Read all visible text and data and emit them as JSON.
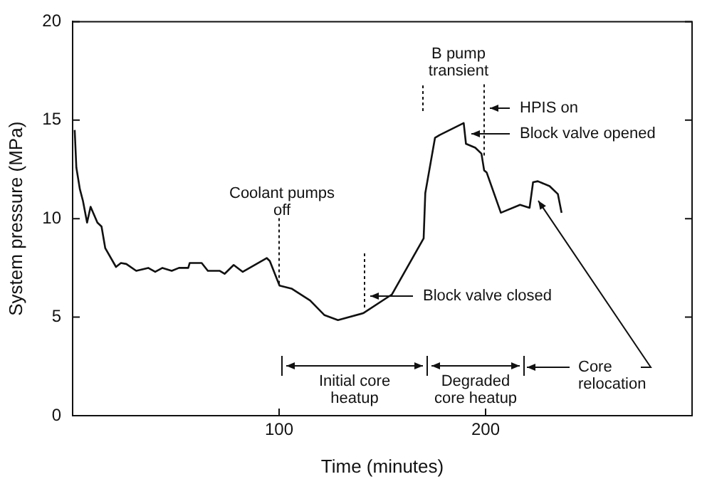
{
  "chart_data": {
    "type": "line",
    "xlabel": "Time (minutes)",
    "ylabel": "System pressure (MPa)",
    "xlim": [
      0,
      300
    ],
    "xticks": [
      100,
      200
    ],
    "ylim": [
      0,
      20
    ],
    "yticks": [
      0,
      5,
      10,
      15,
      20
    ],
    "marker": "none",
    "line_style": "solid",
    "series": [
      {
        "color": "#111111",
        "x": [
          1,
          1.8,
          3.5,
          5,
          7,
          8.7,
          12,
          14,
          15.8,
          21,
          23.4,
          26,
          30.8,
          36.6,
          40,
          43.5,
          48,
          51.5,
          56,
          56.7,
          62.5,
          65.5,
          71.3,
          73.6,
          78,
          82.4,
          94,
          95.5,
          100.2,
          106,
          115,
          122,
          128.5,
          140.7,
          154.6,
          170,
          170.8,
          175.5,
          177.8,
          189.4,
          190.5,
          195,
          198,
          199.3,
          200.5,
          207.4,
          216.7,
          221.3,
          223,
          225.3,
          231,
          235,
          236.8
        ],
        "values": [
          14.5,
          12.6,
          11.5,
          10.9,
          9.8,
          10.6,
          9.8,
          9.6,
          8.5,
          7.55,
          7.75,
          7.7,
          7.35,
          7.5,
          7.3,
          7.5,
          7.35,
          7.5,
          7.5,
          7.75,
          7.75,
          7.35,
          7.35,
          7.2,
          7.65,
          7.3,
          8.0,
          7.85,
          6.6,
          6.45,
          5.85,
          5.1,
          4.85,
          5.2,
          6.15,
          9.0,
          11.3,
          14.1,
          14.25,
          14.85,
          13.8,
          13.6,
          13.3,
          12.45,
          12.35,
          10.3,
          10.7,
          10.55,
          11.85,
          11.9,
          11.65,
          11.25,
          10.3
        ]
      }
    ],
    "annotations": [
      {
        "text": "Coolant pumps\noff",
        "x": 100,
        "y": 6.7
      },
      "Block valve closed",
      {
        "text": "B pump\ntransient",
        "x": 199.3,
        "y": 13.2
      },
      "HPIS on",
      "Block valve opened",
      "Initial core\nheatup",
      "Degraded\ncore heatup",
      "Core\nrelocation"
    ]
  }
}
